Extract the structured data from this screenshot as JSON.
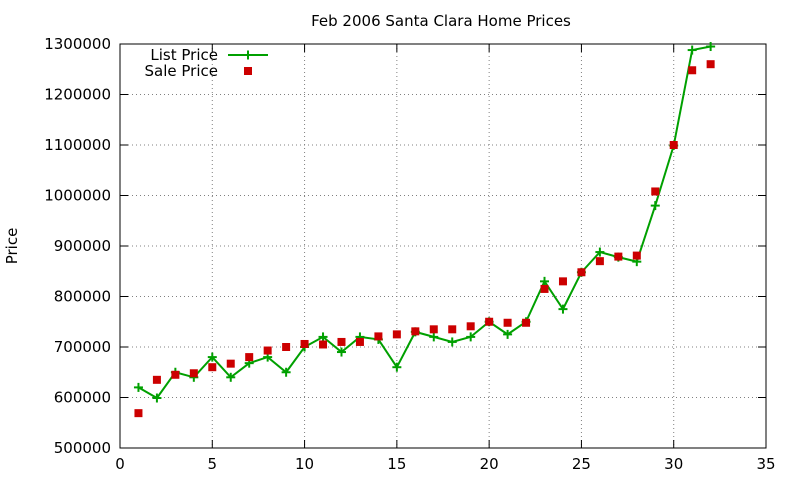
{
  "chart_data": {
    "type": "line",
    "title": "Feb 2006 Santa Clara Home Prices",
    "xlabel": "",
    "ylabel": "Price",
    "xlim": [
      0,
      35
    ],
    "ylim": [
      500000,
      1300000
    ],
    "xticks": [
      0,
      5,
      10,
      15,
      20,
      25,
      30,
      35
    ],
    "yticks": [
      500000,
      600000,
      700000,
      800000,
      900000,
      1000000,
      1100000,
      1200000,
      1300000
    ],
    "grid": true,
    "legend_position": "top-left",
    "series": [
      {
        "name": "List Price",
        "style": "linespoints",
        "marker": "+",
        "color": "#00a000",
        "x": [
          1,
          2,
          3,
          4,
          5,
          6,
          7,
          8,
          9,
          10,
          11,
          12,
          13,
          14,
          15,
          16,
          17,
          18,
          19,
          20,
          21,
          22,
          23,
          24,
          25,
          26,
          27,
          28,
          29,
          30,
          31,
          32
        ],
        "y": [
          620000,
          599000,
          650000,
          640000,
          680000,
          640000,
          668000,
          680000,
          650000,
          700000,
          720000,
          690000,
          720000,
          715000,
          660000,
          730000,
          720000,
          710000,
          720000,
          750000,
          725000,
          750000,
          830000,
          775000,
          848000,
          888000,
          878000,
          869000,
          980000,
          1099000,
          1288000,
          1295000
        ]
      },
      {
        "name": "Sale Price",
        "style": "points",
        "marker": "square",
        "color": "#cc0000",
        "x": [
          1,
          2,
          3,
          4,
          5,
          6,
          7,
          8,
          9,
          10,
          11,
          12,
          13,
          14,
          15,
          16,
          17,
          18,
          19,
          20,
          21,
          22,
          23,
          24,
          25,
          26,
          27,
          28,
          29,
          30,
          31,
          32
        ],
        "y": [
          569000,
          635000,
          645000,
          648000,
          660000,
          667000,
          680000,
          693000,
          700000,
          706000,
          705000,
          710000,
          710000,
          721000,
          725000,
          731000,
          735000,
          735000,
          741000,
          750000,
          748000,
          748000,
          815000,
          830000,
          848000,
          870000,
          879000,
          881000,
          1008000,
          1100000,
          1248000,
          1260000
        ]
      }
    ]
  }
}
